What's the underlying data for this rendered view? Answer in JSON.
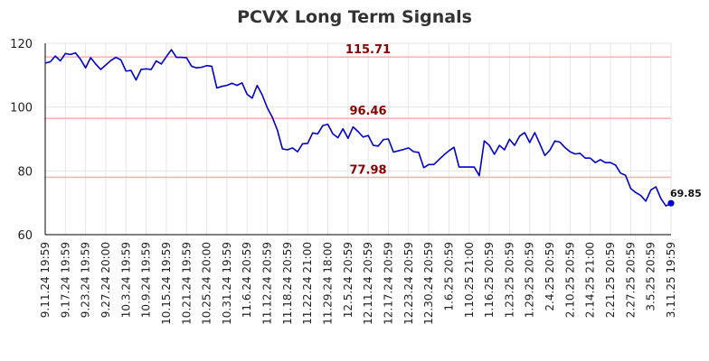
{
  "chart_data": {
    "type": "line",
    "title": "PCVX Long Term Signals",
    "xlabel": "",
    "ylabel": "",
    "ylim": [
      60,
      120
    ],
    "yticks": [
      60,
      80,
      100,
      120
    ],
    "grid": true,
    "line_color": "#0000cc",
    "signal_line_color": "#ffb3b3",
    "signal_label_color": "#8b0000",
    "x_tick_labels": [
      "9.11.24 19:59",
      "9.17.24 19:59",
      "9.23.24 19:59",
      "9.27.24 20:00",
      "10.3.24 19:59",
      "10.9.24 19:59",
      "10.15.24 19:59",
      "10.21.24 19:59",
      "10.25.24 20:00",
      "10.31.24 19:59",
      "11.6.24 20:59",
      "11.12.24 20:59",
      "11.18.24 20:59",
      "11.22.24 21:00",
      "11.29.24 18:00",
      "12.5.24 20:59",
      "12.11.24 20:59",
      "12.17.24 20:59",
      "12.23.24 20:59",
      "12.30.24 20:59",
      "1.6.25 20:59",
      "1.10.25 21:00",
      "1.16.25 20:59",
      "1.23.25 20:59",
      "1.29.25 20:59",
      "2.4.25 20:59",
      "2.10.25 20:59",
      "2.14.25 21:00",
      "2.21.25 20:59",
      "2.27.25 20:59",
      "3.5.25 20:59",
      "3.11.25 19:59"
    ],
    "horizontal_lines": [
      {
        "value": 115.71,
        "label": "115.71"
      },
      {
        "value": 96.46,
        "label": "96.46"
      },
      {
        "value": 77.98,
        "label": "77.98"
      }
    ],
    "last_value_label": "69.85",
    "series": [
      {
        "values": [
          113.8,
          114.2,
          116.0,
          114.5,
          116.8,
          116.5,
          117.0,
          115.0,
          112.3,
          115.5,
          113.5,
          111.8,
          113.2,
          114.6,
          115.6,
          114.8,
          111.3,
          111.5,
          108.5,
          111.8,
          112.0,
          111.8,
          114.5,
          113.5,
          115.8,
          118.0,
          115.6,
          115.6,
          115.5,
          112.8,
          112.3,
          112.5,
          113.0,
          112.8,
          106.0,
          106.5,
          106.8,
          107.5,
          106.8,
          107.6,
          104.0,
          102.8,
          106.8,
          103.8,
          99.8,
          96.8,
          92.8,
          86.9,
          86.6,
          87.2,
          86.0,
          88.5,
          88.6,
          91.9,
          91.6,
          94.2,
          94.6,
          91.6,
          90.4,
          93.2,
          90.2,
          93.8,
          92.3,
          90.6,
          91.1,
          88.0,
          87.8,
          89.8,
          90.0,
          85.9,
          86.3,
          86.7,
          87.2,
          86.0,
          85.8,
          81.0,
          82.0,
          82.0,
          83.5,
          85.0,
          86.3,
          87.4,
          81.2,
          81.2,
          81.2,
          81.2,
          78.5,
          89.4,
          88.0,
          85.2,
          88.0,
          86.6,
          89.9,
          88.0,
          90.9,
          92.0,
          88.9,
          92.0,
          88.5,
          84.8,
          86.5,
          89.4,
          89.0,
          87.3,
          86.0,
          85.3,
          85.5,
          84.0,
          84.0,
          82.6,
          83.5,
          82.6,
          82.6,
          81.8,
          79.3,
          78.6,
          74.5,
          73.2,
          72.3,
          70.5,
          74.0,
          75.0,
          71.3,
          69.0,
          69.85
        ]
      }
    ]
  }
}
